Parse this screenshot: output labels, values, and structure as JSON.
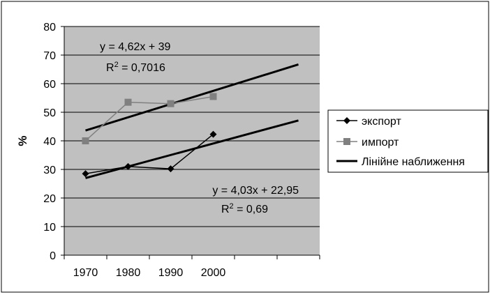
{
  "chart_data": {
    "type": "line",
    "ylabel": "%",
    "ylim": [
      0,
      80
    ],
    "yticks": [
      0,
      10,
      20,
      30,
      40,
      50,
      60,
      70,
      80
    ],
    "xticks": [
      "1970",
      "1980",
      "1990",
      "2000"
    ],
    "grid": true,
    "legend_position": "right",
    "colors": {
      "plot_bg": "#c0c0c0",
      "export": "#000000",
      "import": "#808080",
      "trend": "#000000"
    },
    "series": [
      {
        "name": "экспорт",
        "x": [
          1970,
          1980,
          1990,
          2000
        ],
        "values": [
          28.5,
          31.0,
          30.2,
          42.3
        ],
        "marker": "diamond"
      },
      {
        "name": "импорт",
        "x": [
          1970,
          1980,
          1990,
          2000
        ],
        "values": [
          40.0,
          53.5,
          53.0,
          55.5
        ],
        "marker": "square"
      }
    ],
    "trendlines": [
      {
        "name": "Лінійне наблюження",
        "applies_to": "импорт",
        "slope": 4.62,
        "intercept": 39,
        "equation": "y = 4,62x + 39",
        "r2_label": "R",
        "r2_value": " = 0,7016"
      },
      {
        "name": "Лінійне наблюження",
        "applies_to": "экспорт",
        "slope": 4.03,
        "intercept": 22.95,
        "equation": "y = 4,03x + 22,95",
        "r2_label": "R",
        "r2_value": " = 0,69"
      }
    ],
    "legend": {
      "export": "экспорт",
      "import": "импорт",
      "linear": "Лінійне наближення"
    }
  }
}
